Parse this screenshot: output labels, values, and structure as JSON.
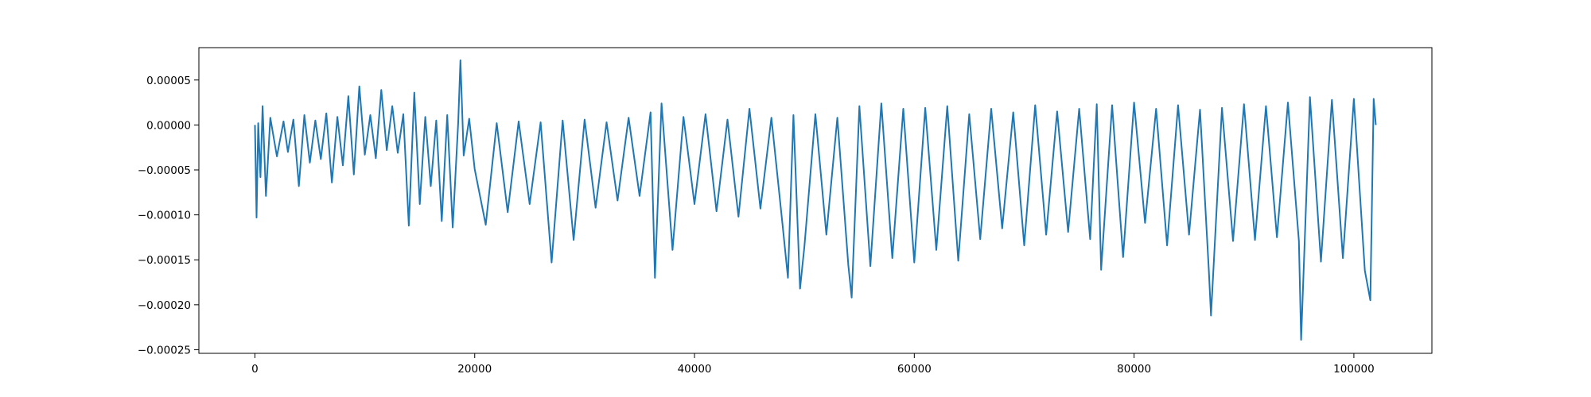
{
  "chart_data": {
    "type": "line",
    "title": "",
    "xlabel": "",
    "ylabel": "",
    "xlim": [
      -5100,
      107100
    ],
    "ylim": [
      -0.000254,
      8.6e-05
    ],
    "x_ticks": [
      0,
      20000,
      40000,
      60000,
      80000,
      100000
    ],
    "x_tick_labels": [
      "0",
      "20000",
      "40000",
      "60000",
      "80000",
      "100000"
    ],
    "y_ticks": [
      5e-05,
      0.0,
      -5e-05,
      -0.0001,
      -0.00015,
      -0.0002,
      -0.00025
    ],
    "y_tick_labels": [
      "0.00005",
      "0.00000",
      "−0.00005",
      "−0.00010",
      "−0.00015",
      "−0.00020",
      "−0.00025"
    ],
    "grid": false,
    "legend": "none",
    "series": [
      {
        "color": "#1f77b4",
        "x": [
          0,
          150,
          300,
          500,
          700,
          1000,
          1400,
          2000,
          2600,
          3000,
          3500,
          4000,
          4500,
          5000,
          5500,
          6000,
          6500,
          7000,
          7500,
          8000,
          8500,
          9000,
          9500,
          10000,
          10500,
          11000,
          11500,
          12000,
          12500,
          13000,
          13500,
          14000,
          14500,
          15000,
          15500,
          16000,
          16500,
          17000,
          17500,
          18000,
          18500,
          18700,
          19000,
          19500,
          20000,
          21000,
          22000,
          23000,
          24000,
          25000,
          26000,
          27000,
          28000,
          29000,
          30000,
          31000,
          32000,
          33000,
          34000,
          35000,
          36000,
          36400,
          37000,
          38000,
          39000,
          40000,
          41000,
          42000,
          43000,
          44000,
          45000,
          46000,
          47000,
          48000,
          48500,
          49000,
          49600,
          50000,
          51000,
          52000,
          53000,
          54000,
          54300,
          55000,
          56000,
          57000,
          58000,
          59000,
          60000,
          61000,
          62000,
          63000,
          64000,
          65000,
          66000,
          67000,
          68000,
          69000,
          70000,
          71000,
          72000,
          73000,
          74000,
          75000,
          76000,
          76600,
          77000,
          78000,
          79000,
          80000,
          81000,
          82000,
          83000,
          84000,
          85000,
          86000,
          86800,
          87000,
          88000,
          89000,
          90000,
          91000,
          92000,
          93000,
          94000,
          95000,
          95200,
          96000,
          97000,
          98000,
          99000,
          100000,
          101000,
          101500,
          101800,
          102000
        ],
        "y": [
          0.0,
          -0.000103,
          2e-06,
          -5.8e-05,
          2.1e-05,
          -7.9e-05,
          8e-06,
          -3.5e-05,
          4e-06,
          -3e-05,
          6e-06,
          -6.8e-05,
          1.1e-05,
          -4.2e-05,
          5e-06,
          -3.8e-05,
          1.3e-05,
          -6.4e-05,
          9e-06,
          -4.5e-05,
          3.2e-05,
          -5.5e-05,
          4.3e-05,
          -3.3e-05,
          1.1e-05,
          -3.7e-05,
          3.9e-05,
          -2.8e-05,
          2.1e-05,
          -3.1e-05,
          1.2e-05,
          -0.000112,
          3.6e-05,
          -8.8e-05,
          9e-06,
          -6.8e-05,
          5e-06,
          -0.000107,
          1.1e-05,
          -0.000114,
          3e-06,
          7.2e-05,
          -3.4e-05,
          7e-06,
          -4.9e-05,
          -0.000111,
          2e-06,
          -9.7e-05,
          4e-06,
          -8.8e-05,
          3e-06,
          -0.000153,
          5e-06,
          -0.000128,
          6e-06,
          -9.2e-05,
          3e-06,
          -8.4e-05,
          8e-06,
          -7.9e-05,
          1.4e-05,
          -0.00017,
          2.4e-05,
          -0.000139,
          9e-06,
          -8.8e-05,
          1.2e-05,
          -9.6e-05,
          6e-06,
          -0.000102,
          1.8e-05,
          -9.3e-05,
          8e-06,
          -0.00011,
          -0.00017,
          1.1e-05,
          -0.000182,
          -0.000135,
          1.2e-05,
          -0.000122,
          8e-06,
          -0.000156,
          -0.000192,
          2.1e-05,
          -0.000157,
          2.4e-05,
          -0.000148,
          1.8e-05,
          -0.000153,
          1.9e-05,
          -0.000139,
          2.1e-05,
          -0.000151,
          1.2e-05,
          -0.000127,
          1.8e-05,
          -0.000115,
          1.4e-05,
          -0.000134,
          2.2e-05,
          -0.000122,
          1.5e-05,
          -0.000119,
          1.8e-05,
          -0.000127,
          2.3e-05,
          -0.000161,
          2.2e-05,
          -0.000147,
          2.5e-05,
          -0.000109,
          1.8e-05,
          -0.000134,
          2.2e-05,
          -0.000122,
          1.7e-05,
          -0.000162,
          -0.000212,
          1.9e-05,
          -0.000129,
          2.3e-05,
          -0.000128,
          2.1e-05,
          -0.000125,
          2.5e-05,
          -0.000129,
          -0.000239,
          3.1e-05,
          -0.000152,
          2.8e-05,
          -0.000148,
          2.9e-05,
          -0.000162,
          -0.000195,
          2.9e-05,
          0.0
        ]
      }
    ]
  }
}
